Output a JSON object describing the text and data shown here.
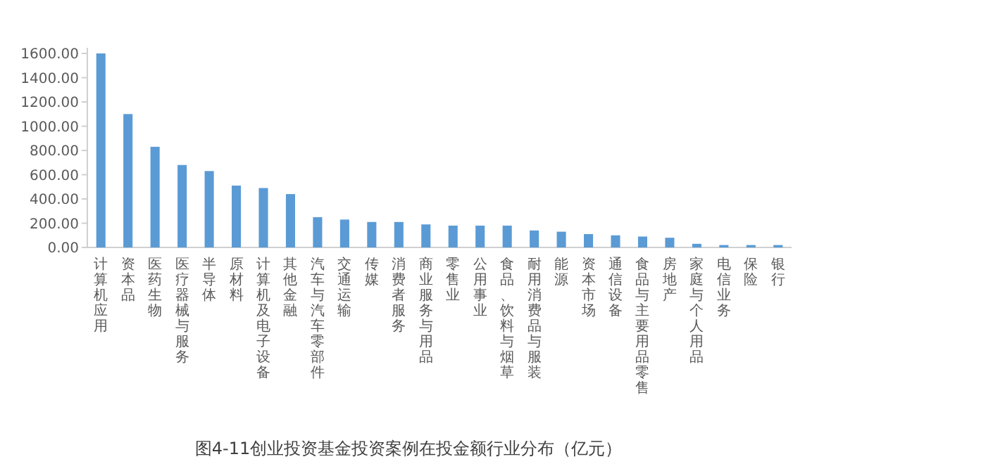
{
  "chart_data": {
    "type": "bar",
    "title": "图4-11创业投资基金投资案例在投金额行业分布（亿元）",
    "categories": [
      "计算机应用",
      "资本品",
      "医药生物",
      "医疗器械与服务",
      "半导体",
      "原材料",
      "计算机及电子设备",
      "其他金融",
      "汽车与汽车零部件",
      "交通运输",
      "传媒",
      "消费者服务",
      "商业服务与用品",
      "零售业",
      "公用事业",
      "食品、饮料与烟草",
      "耐用消费品与服装",
      "能源",
      "资本市场",
      "通信设备",
      "食品与主要用品零售",
      "房地产",
      "家庭与个人用品",
      "电信业务",
      "保险",
      "银行"
    ],
    "values": [
      1600,
      1100,
      830,
      680,
      630,
      510,
      490,
      440,
      250,
      230,
      210,
      210,
      190,
      180,
      180,
      180,
      140,
      130,
      110,
      100,
      90,
      80,
      30,
      20,
      20,
      20
    ],
    "color": "#5b9bd5",
    "ylim": [
      0,
      1600
    ],
    "yticks": [
      {
        "value": 0,
        "label": "0.00"
      },
      {
        "value": 200,
        "label": "200.00"
      },
      {
        "value": 400,
        "label": "400.00"
      },
      {
        "value": 600,
        "label": "600.00"
      },
      {
        "value": 800,
        "label": "800.00"
      },
      {
        "value": 1000,
        "label": "1000.00"
      },
      {
        "value": 1200,
        "label": "1200.00"
      },
      {
        "value": 1400,
        "label": "1400.00"
      },
      {
        "value": 1600,
        "label": "1600.00"
      }
    ],
    "grid": false
  }
}
